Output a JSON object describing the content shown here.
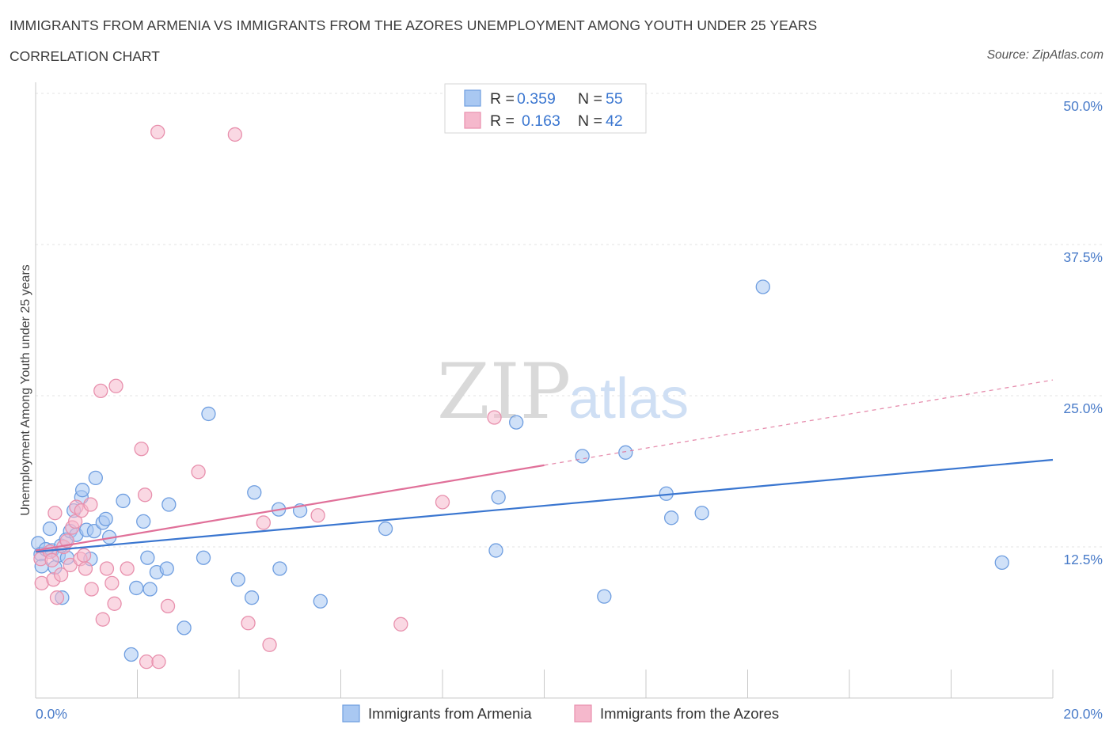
{
  "title": "IMMIGRANTS FROM ARMENIA VS IMMIGRANTS FROM THE AZORES UNEMPLOYMENT AMONG YOUTH UNDER 25 YEARS",
  "subtitle": "CORRELATION CHART",
  "source": "Source: ZipAtlas.com",
  "watermark": {
    "zip": "ZIP",
    "atlas": "atlas"
  },
  "colors": {
    "blue": "#3a76d0",
    "blue_fill": "#a9c8f2",
    "blue_stroke": "#6f9ee0",
    "pink": "#e07099",
    "pink_fill": "#f5b8cc",
    "pink_stroke": "#e890ad",
    "grid": "#e3e3e3",
    "tick_text": "#4a7cc9"
  },
  "chart_data": {
    "type": "scatter",
    "title": "IMMIGRANTS FROM ARMENIA VS IMMIGRANTS FROM THE AZORES UNEMPLOYMENT AMONG YOUTH UNDER 25 YEARS",
    "xlabel": "",
    "ylabel": "Unemployment Among Youth under 25 years",
    "xlim": [
      0,
      20
    ],
    "ylim": [
      0,
      50
    ],
    "x_tick_labels": [
      "0.0%",
      "20.0%"
    ],
    "y_ticks": [
      {
        "value": 12.5,
        "label": "12.5%"
      },
      {
        "value": 25,
        "label": "25.0%"
      },
      {
        "value": 37.5,
        "label": "37.5%"
      },
      {
        "value": 50,
        "label": "50.0%"
      }
    ],
    "legend": [
      {
        "series": "Immigrants from Armenia",
        "r_label": "R =",
        "r": "0.359",
        "n_label": "N =",
        "n": "55"
      },
      {
        "series": "Immigrants from the Azores",
        "r_label": "R =",
        "r": "0.163",
        "n_label": "N =",
        "n": "42"
      }
    ],
    "series": [
      {
        "name": "Immigrants from Armenia",
        "color": "#3a76d0",
        "trend": {
          "x0": 0,
          "y0": 12.1,
          "x1": 20,
          "y1": 19.7,
          "solid_to": 20
        },
        "points": [
          [
            0.05,
            12.8
          ],
          [
            0.1,
            11.9
          ],
          [
            0.12,
            10.9
          ],
          [
            0.2,
            12.3
          ],
          [
            0.28,
            14.0
          ],
          [
            0.32,
            12.2
          ],
          [
            0.38,
            10.8
          ],
          [
            0.45,
            11.8
          ],
          [
            0.5,
            12.6
          ],
          [
            0.52,
            8.3
          ],
          [
            0.6,
            13.1
          ],
          [
            0.62,
            11.6
          ],
          [
            0.68,
            13.8
          ],
          [
            0.75,
            15.5
          ],
          [
            0.8,
            13.5
          ],
          [
            0.9,
            16.6
          ],
          [
            0.92,
            17.2
          ],
          [
            1.0,
            13.9
          ],
          [
            1.08,
            11.5
          ],
          [
            1.15,
            13.8
          ],
          [
            1.18,
            18.2
          ],
          [
            1.32,
            14.5
          ],
          [
            1.38,
            14.8
          ],
          [
            1.45,
            13.3
          ],
          [
            1.72,
            16.3
          ],
          [
            1.88,
            3.6
          ],
          [
            1.98,
            9.1
          ],
          [
            2.12,
            14.6
          ],
          [
            2.2,
            11.6
          ],
          [
            2.25,
            9.0
          ],
          [
            2.38,
            10.4
          ],
          [
            2.58,
            10.7
          ],
          [
            2.62,
            16.0
          ],
          [
            2.92,
            5.8
          ],
          [
            3.3,
            11.6
          ],
          [
            3.4,
            23.5
          ],
          [
            3.98,
            9.8
          ],
          [
            4.25,
            8.3
          ],
          [
            4.3,
            17.0
          ],
          [
            4.78,
            15.6
          ],
          [
            4.8,
            10.7
          ],
          [
            5.2,
            15.5
          ],
          [
            5.6,
            8.0
          ],
          [
            6.88,
            14.0
          ],
          [
            9.05,
            12.2
          ],
          [
            9.1,
            16.6
          ],
          [
            9.45,
            22.8
          ],
          [
            10.75,
            20.0
          ],
          [
            11.18,
            8.4
          ],
          [
            11.6,
            20.3
          ],
          [
            12.4,
            16.9
          ],
          [
            12.5,
            14.9
          ],
          [
            13.1,
            15.3
          ],
          [
            14.3,
            34.0
          ],
          [
            19.0,
            11.2
          ]
        ]
      },
      {
        "name": "Immigrants from the Azores",
        "color": "#e07099",
        "trend": {
          "x0": 0,
          "y0": 12.2,
          "x1": 20,
          "y1": 26.3,
          "solid_to": 10.0
        },
        "points": [
          [
            0.1,
            11.5
          ],
          [
            0.12,
            9.5
          ],
          [
            0.28,
            12.1
          ],
          [
            0.32,
            11.4
          ],
          [
            0.35,
            9.8
          ],
          [
            0.38,
            15.3
          ],
          [
            0.42,
            8.3
          ],
          [
            0.5,
            10.2
          ],
          [
            0.55,
            12.5
          ],
          [
            0.62,
            13.0
          ],
          [
            0.68,
            11.0
          ],
          [
            0.72,
            14.1
          ],
          [
            0.78,
            14.6
          ],
          [
            0.8,
            15.8
          ],
          [
            0.88,
            11.5
          ],
          [
            0.9,
            15.5
          ],
          [
            0.95,
            11.8
          ],
          [
            0.98,
            10.7
          ],
          [
            1.08,
            16.0
          ],
          [
            1.1,
            9.0
          ],
          [
            1.28,
            25.4
          ],
          [
            1.32,
            6.5
          ],
          [
            1.4,
            10.7
          ],
          [
            1.5,
            9.5
          ],
          [
            1.55,
            7.8
          ],
          [
            1.58,
            25.8
          ],
          [
            1.8,
            10.7
          ],
          [
            2.08,
            20.6
          ],
          [
            2.15,
            16.8
          ],
          [
            2.18,
            3.0
          ],
          [
            2.4,
            46.8
          ],
          [
            2.42,
            3.0
          ],
          [
            2.6,
            7.6
          ],
          [
            3.2,
            18.7
          ],
          [
            3.92,
            46.6
          ],
          [
            4.18,
            6.2
          ],
          [
            4.48,
            14.5
          ],
          [
            4.6,
            4.4
          ],
          [
            5.55,
            15.1
          ],
          [
            7.18,
            6.1
          ],
          [
            8.0,
            16.2
          ],
          [
            9.02,
            23.2
          ]
        ]
      }
    ]
  }
}
